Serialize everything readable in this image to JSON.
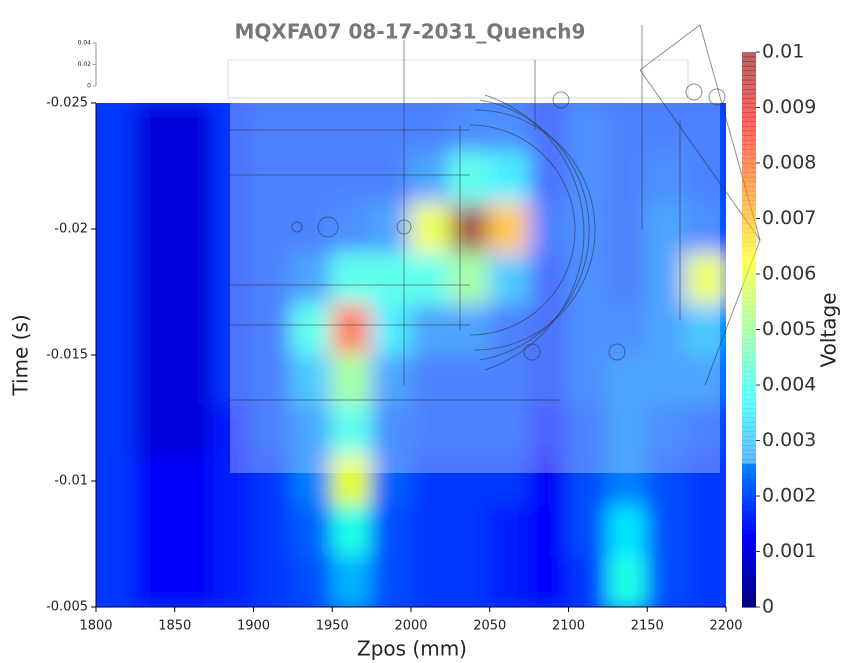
{
  "chart_data": {
    "type": "heatmap",
    "title": "MQXFA07 08-17-2031_Quench9",
    "x_label": "Zpos (mm)",
    "y_label": "Time (s)",
    "colorbar_label": "Voltage",
    "colormap": "jet",
    "x": [
      1812.5,
      1837.5,
      1862.5,
      1887.5,
      1912.5,
      1937.5,
      1962.5,
      1987.5,
      2012.5,
      2037.5,
      2062.5,
      2087.5,
      2112.5,
      2137.5,
      2162.5,
      2187.5
    ],
    "y": [
      -0.024,
      -0.022,
      -0.02,
      -0.018,
      -0.016,
      -0.014,
      -0.012,
      -0.01,
      -0.008,
      -0.006
    ],
    "z": [
      [
        0.0018,
        0.0009,
        0.0009,
        0.0018,
        0.002,
        0.002,
        0.002,
        0.002,
        0.002,
        0.0022,
        0.0022,
        0.0018,
        0.0022,
        0.002,
        0.002,
        0.002
      ],
      [
        0.0018,
        0.0009,
        0.0009,
        0.0018,
        0.002,
        0.002,
        0.002,
        0.002,
        0.0025,
        0.004,
        0.0035,
        0.0018,
        0.0022,
        0.002,
        0.0022,
        0.002
      ],
      [
        0.0018,
        0.0009,
        0.0009,
        0.0018,
        0.002,
        0.002,
        0.0022,
        0.0025,
        0.006,
        0.01,
        0.007,
        0.002,
        0.0022,
        0.002,
        0.0025,
        0.0022
      ],
      [
        0.0018,
        0.0009,
        0.0009,
        0.0018,
        0.002,
        0.0025,
        0.004,
        0.004,
        0.004,
        0.005,
        0.003,
        0.0018,
        0.0022,
        0.002,
        0.0025,
        0.006
      ],
      [
        0.0018,
        0.0009,
        0.0009,
        0.0018,
        0.002,
        0.004,
        0.008,
        0.0035,
        0.0025,
        0.0025,
        0.002,
        0.0018,
        0.0022,
        0.0022,
        0.0025,
        0.003
      ],
      [
        0.0018,
        0.0009,
        0.0009,
        0.0018,
        0.002,
        0.003,
        0.005,
        0.0025,
        0.002,
        0.002,
        0.002,
        0.0018,
        0.0022,
        0.0025,
        0.0025,
        0.0025
      ],
      [
        0.0018,
        0.0009,
        0.0009,
        0.0015,
        0.002,
        0.0025,
        0.004,
        0.0022,
        0.002,
        0.002,
        0.002,
        0.0015,
        0.002,
        0.0025,
        0.0022,
        0.002
      ],
      [
        0.0018,
        0.0012,
        0.0012,
        0.0015,
        0.0018,
        0.0025,
        0.006,
        0.0022,
        0.0018,
        0.0018,
        0.0018,
        0.0012,
        0.002,
        0.0025,
        0.002,
        0.0018
      ],
      [
        0.0018,
        0.0012,
        0.0012,
        0.0015,
        0.0018,
        0.0022,
        0.004,
        0.002,
        0.0018,
        0.0018,
        0.0015,
        0.0012,
        0.002,
        0.0035,
        0.002,
        0.0018
      ],
      [
        0.0018,
        0.0012,
        0.0012,
        0.0015,
        0.0018,
        0.002,
        0.003,
        0.002,
        0.0018,
        0.0018,
        0.0015,
        0.0012,
        0.0018,
        0.004,
        0.002,
        0.0018
      ]
    ],
    "xlim": [
      1800,
      2200
    ],
    "xticks": [
      1800,
      1850,
      1900,
      1950,
      2000,
      2050,
      2100,
      2150,
      2200
    ],
    "ylim": [
      -0.005,
      -0.025
    ],
    "yticks": [
      -0.025,
      -0.02,
      -0.015,
      -0.01,
      -0.005
    ],
    "clim": [
      0,
      0.01
    ],
    "cticks": [
      0,
      0.001,
      0.002,
      0.003,
      0.004,
      0.005,
      0.006,
      0.007,
      0.008,
      0.009,
      0.01
    ],
    "inset_ylim": [
      0,
      0.04
    ],
    "inset_yticks": [
      0.04,
      0.02,
      0
    ]
  }
}
